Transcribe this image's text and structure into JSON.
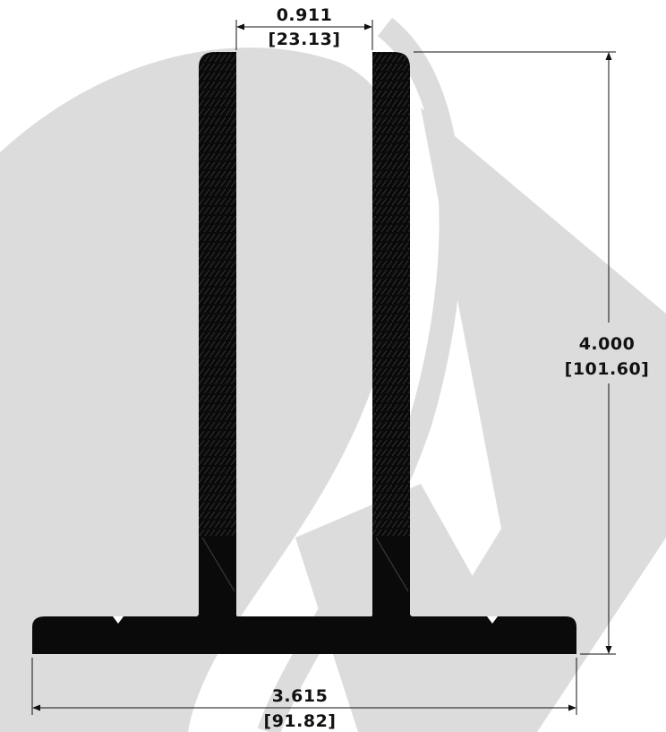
{
  "colors": {
    "background": "#ffffff",
    "watermark": "#dcdcdc",
    "profile": "#0a0a0a",
    "dimension": "#111111"
  },
  "dimensions": {
    "gap": {
      "inch": "0.911",
      "mm": "[23.13]"
    },
    "height": {
      "inch": "4.000",
      "mm": "[101.60]"
    },
    "width": {
      "inch": "3.615",
      "mm": "[91.82]"
    }
  }
}
